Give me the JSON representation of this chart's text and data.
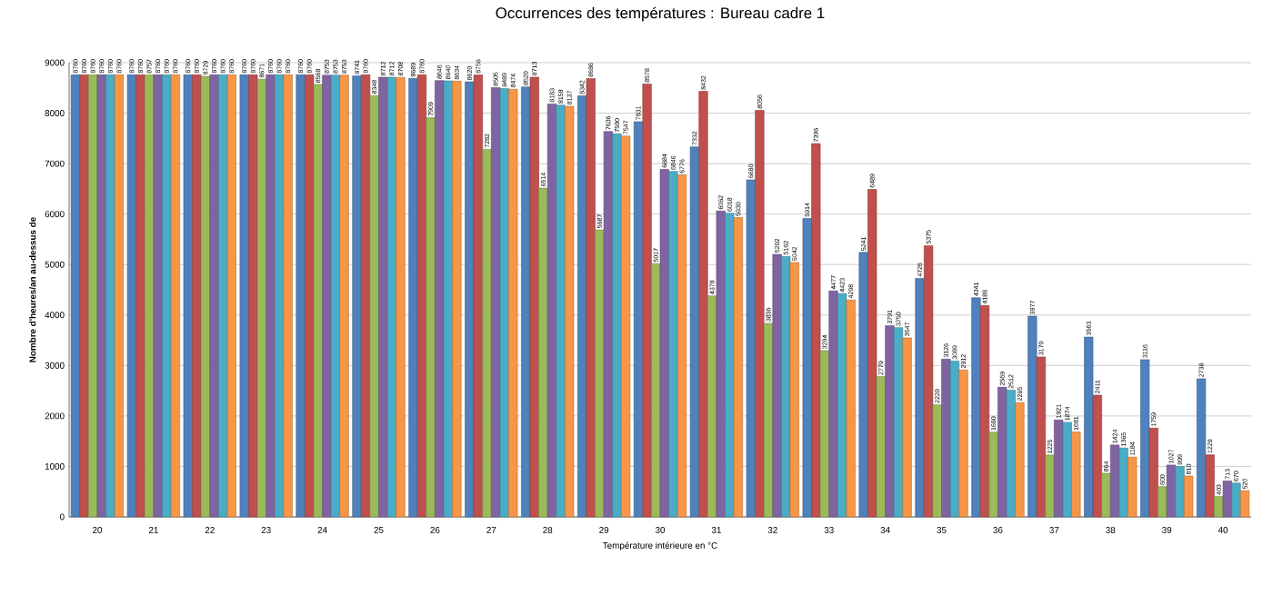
{
  "chart_data": {
    "type": "bar",
    "title": "Occurrences des températures : Bureau cadre 1",
    "xlabel": "Température intérieure en °C",
    "ylabel": "Nombre d'heures/an au-dessus de",
    "categories": [
      "20",
      "21",
      "22",
      "23",
      "24",
      "25",
      "26",
      "27",
      "28",
      "29",
      "30",
      "31",
      "32",
      "33",
      "34",
      "35",
      "36",
      "37",
      "38",
      "39",
      "40"
    ],
    "ylim": [
      0,
      9000
    ],
    "yticks": [
      0,
      1000,
      2000,
      3000,
      4000,
      5000,
      6000,
      7000,
      8000,
      9000
    ],
    "grid": "y",
    "data_labels": true,
    "series": [
      {
        "color": "#4f81bd",
        "values": [
          8760,
          8760,
          8760,
          8760,
          8760,
          8741,
          8689,
          8620,
          8520,
          8342,
          7831,
          7332,
          6680,
          5914,
          5241,
          4726,
          4341,
          3977,
          3563,
          3116,
          2738
        ]
      },
      {
        "color": "#c0504d",
        "values": [
          8760,
          8760,
          8760,
          8760,
          8760,
          8760,
          8760,
          8756,
          8713,
          8686,
          8578,
          8432,
          8056,
          7396,
          6489,
          5375,
          4188,
          3170,
          2411,
          1759,
          1229
        ]
      },
      {
        "color": "#9bbb59",
        "values": [
          8760,
          8757,
          8729,
          8671,
          8568,
          8348,
          7909,
          7282,
          6514,
          5687,
          5017,
          4378,
          3836,
          3294,
          2779,
          2220,
          1680,
          1225,
          864,
          600,
          403
        ]
      },
      {
        "color": "#8064a2",
        "values": [
          8760,
          8760,
          8760,
          8760,
          8753,
          8712,
          8646,
          8505,
          8183,
          7636,
          6884,
          6062,
          5202,
          4477,
          3791,
          3126,
          2569,
          1921,
          1424,
          1027,
          713
        ]
      },
      {
        "color": "#4bacc6",
        "values": [
          8760,
          8760,
          8760,
          8760,
          8753,
          8712,
          8640,
          8489,
          8158,
          7590,
          6846,
          6018,
          5162,
          4423,
          3750,
          3089,
          2512,
          1874,
          1365,
          999,
          670
        ]
      },
      {
        "color": "#f79646",
        "values": [
          8760,
          8760,
          8760,
          8760,
          8753,
          8708,
          8634,
          8474,
          8137,
          7547,
          6776,
          5930,
          5042,
          4298,
          3547,
          2912,
          2265,
          1681,
          1184,
          810,
          520
        ]
      }
    ]
  }
}
